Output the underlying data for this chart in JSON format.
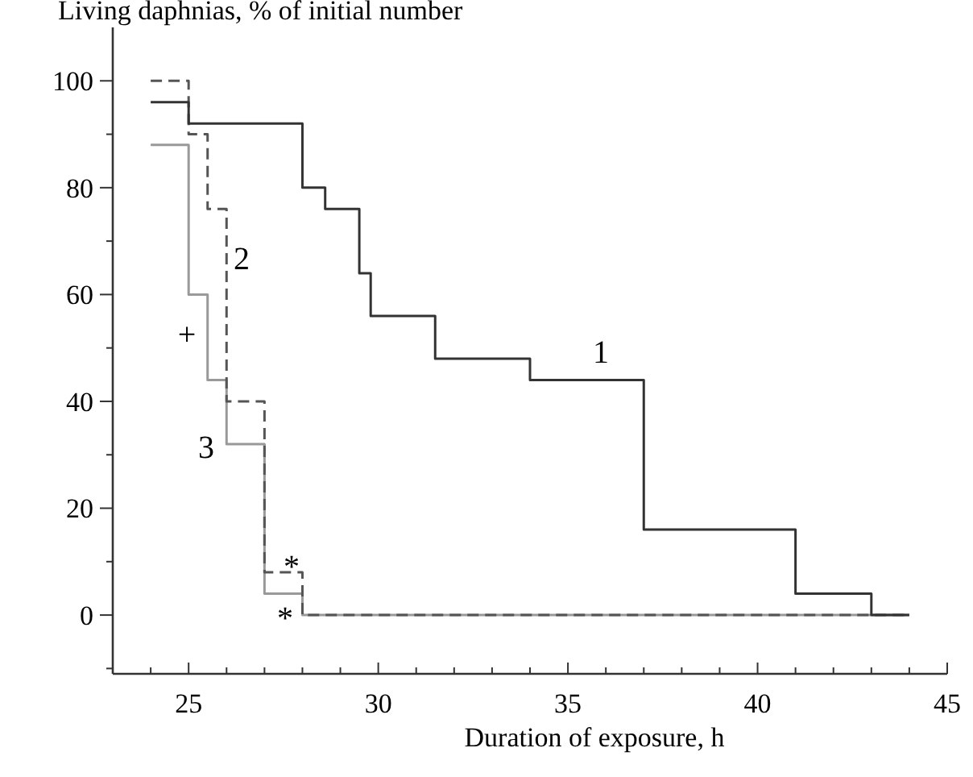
{
  "chart_data": {
    "type": "step",
    "title": "Living daphnias, % of initial number",
    "xlabel": "Duration of exposure, h",
    "xlim": [
      23,
      45
    ],
    "ylim": [
      -11,
      110
    ],
    "xticks": [
      {
        "value": 24,
        "label": null
      },
      25,
      {
        "value": 26,
        "label": null
      },
      {
        "value": 27,
        "label": null
      },
      {
        "value": 28,
        "label": null
      },
      {
        "value": 29,
        "label": null
      },
      30,
      {
        "value": 31,
        "label": null
      },
      {
        "value": 32,
        "label": null
      },
      {
        "value": 33,
        "label": null
      },
      {
        "value": 34,
        "label": null
      },
      35,
      {
        "value": 36,
        "label": null
      },
      {
        "value": 37,
        "label": null
      },
      {
        "value": 38,
        "label": null
      },
      {
        "value": 39,
        "label": null
      },
      40,
      {
        "value": 41,
        "label": null
      },
      {
        "value": 42,
        "label": null
      },
      {
        "value": 43,
        "label": null
      },
      {
        "value": 44,
        "label": null
      },
      45
    ],
    "yticks": [
      {
        "value": -10,
        "label": null
      },
      0,
      {
        "value": 10,
        "label": null
      },
      20,
      {
        "value": 30,
        "label": null
      },
      40,
      {
        "value": 50,
        "label": null
      },
      60,
      {
        "value": 70,
        "label": null
      },
      80,
      {
        "value": 90,
        "label": null
      },
      100
    ],
    "grid": false,
    "marker": "none",
    "series": [
      {
        "color": "#333333",
        "line_style": "solid",
        "x": [
          24,
          25,
          28,
          28.6,
          29.5,
          29.8,
          31.5,
          34,
          37,
          41,
          43,
          44
        ],
        "values": [
          96,
          92,
          80,
          76,
          64,
          56,
          48,
          44,
          16,
          4,
          0,
          0
        ]
      },
      {
        "color": "#555555",
        "line_style": "dashed",
        "x": [
          24,
          25,
          25.5,
          26,
          27,
          28,
          44
        ],
        "values": [
          100,
          90,
          76,
          40,
          8,
          0,
          0
        ]
      },
      {
        "color": "#999999",
        "line_style": "solid",
        "x": [
          24,
          25,
          25.5,
          26,
          27,
          28,
          44
        ],
        "values": [
          88,
          60,
          44,
          32,
          4,
          0,
          0
        ]
      }
    ],
    "annotations": [
      "1",
      "2",
      "3",
      "+",
      "*",
      "*"
    ]
  }
}
